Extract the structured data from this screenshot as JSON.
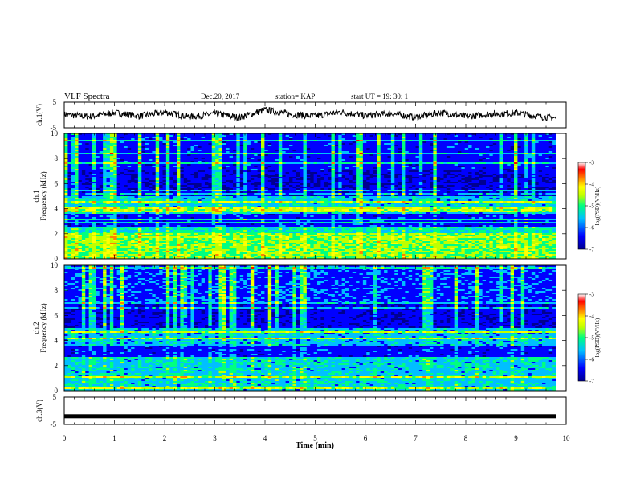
{
  "header": {
    "title": "VLF Spectra",
    "date": "Dec.20, 2017",
    "station": "station= KAP",
    "start": "start  UT =   19: 30: 1"
  },
  "chart_data": [
    {
      "type": "line",
      "panel": "ch1-waveform",
      "ylabel": "ch.1(V)",
      "ylim": [
        -5,
        5
      ],
      "yticks": [
        "5",
        "-5"
      ],
      "x": [
        0,
        0.5,
        1,
        1.5,
        2,
        2.5,
        3,
        3.5,
        4,
        4.5,
        5,
        5.5,
        6,
        6.5,
        7,
        7.5,
        8,
        8.5,
        9,
        9.5,
        9.8
      ],
      "y": [
        0.2,
        -0.6,
        0.9,
        -0.4,
        1.1,
        -0.8,
        0.5,
        -1.0,
        2.0,
        0.3,
        -0.5,
        1.2,
        -0.3,
        0.6,
        -0.9,
        1.0,
        -0.6,
        0.4,
        0.8,
        -0.7,
        -1.2
      ]
    },
    {
      "type": "heatmap",
      "panel": "ch1-spectrogram",
      "ylabel": "ch.1\nFrequency (kHz)",
      "ylim": [
        0,
        10
      ],
      "yticks": [
        "0",
        "2",
        "4",
        "6",
        "8",
        "10"
      ],
      "colorbar": {
        "label": "log(PSD)(V²/Hz)",
        "range": [
          -7,
          -3
        ],
        "ticks": [
          "-3",
          "-4",
          "-5",
          "-6",
          "-7"
        ]
      },
      "bands_khz": [
        {
          "range": [
            0,
            2
          ],
          "log_psd": -4.5
        },
        {
          "range": [
            2,
            2.6
          ],
          "log_psd": -5.0
        },
        {
          "range": [
            2.6,
            3.6
          ],
          "log_psd": -6.0
        },
        {
          "range": [
            3.6,
            5
          ],
          "log_psd": -5.2
        },
        {
          "range": [
            5,
            7
          ],
          "log_psd": -6.3
        },
        {
          "range": [
            7,
            10
          ],
          "log_psd": -6.0
        }
      ]
    },
    {
      "type": "heatmap",
      "panel": "ch2-spectrogram",
      "ylabel": "ch.2\nFrequency (kHz)",
      "ylim": [
        0,
        10
      ],
      "yticks": [
        "0",
        "2",
        "4",
        "6",
        "8",
        "10"
      ],
      "colorbar": {
        "label": "log(PSD)(V²/Hz)",
        "range": [
          -7,
          -3
        ],
        "ticks": [
          "-3",
          "-4",
          "-5",
          "-6",
          "-7"
        ]
      },
      "bands_khz": [
        {
          "range": [
            0,
            2.6
          ],
          "log_psd": -5.2
        },
        {
          "range": [
            2.6,
            3.6
          ],
          "log_psd": -6.0
        },
        {
          "range": [
            3.6,
            5
          ],
          "log_psd": -5.3
        },
        {
          "range": [
            5,
            7
          ],
          "log_psd": -6.2
        },
        {
          "range": [
            7,
            10
          ],
          "log_psd": -5.8
        }
      ]
    },
    {
      "type": "line",
      "panel": "ch3-waveform",
      "ylabel": "ch.3(V)",
      "ylim": [
        -5,
        5
      ],
      "yticks": [
        "5",
        "-5"
      ],
      "x": [
        0,
        9.8
      ],
      "y": [
        -2,
        -2
      ]
    }
  ],
  "xaxis": {
    "label": "Time (min)",
    "range": [
      0,
      10
    ],
    "ticks": [
      "0",
      "1",
      "2",
      "3",
      "4",
      "5",
      "6",
      "7",
      "8",
      "9",
      "10"
    ]
  },
  "colors": {
    "colormap": [
      "#00008f",
      "#0000ff",
      "#00bfff",
      "#00ff80",
      "#bfff00",
      "#ffff00",
      "#ff8000",
      "#ff0000",
      "#ffffff"
    ]
  }
}
